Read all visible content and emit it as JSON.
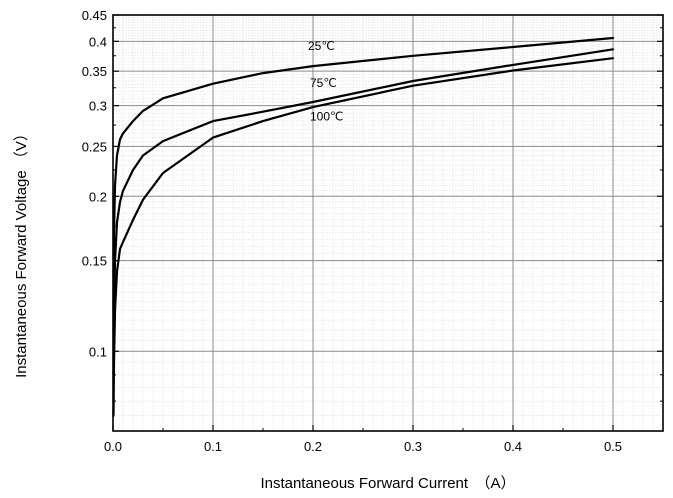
{
  "chart_data": {
    "type": "line",
    "title": "",
    "xlabel": "Instantaneous Forward Current　（A）",
    "ylabel": "Instantaneous Forward Voltage （V）",
    "xlim": [
      0,
      0.55
    ],
    "ylim": [
      0.07,
      0.45
    ],
    "yscale": "log",
    "grid": true,
    "x_ticks": [
      "0.0",
      "0.1",
      "0.2",
      "0.3",
      "0.4",
      "0.5"
    ],
    "x_tick_values": [
      0,
      0.1,
      0.2,
      0.3,
      0.4,
      0.5
    ],
    "y_ticks": [
      "0.1",
      "0.15",
      "0.2",
      "0.25",
      "0.3",
      "0.35",
      "0.4",
      "0.45"
    ],
    "y_tick_values": [
      0.1,
      0.15,
      0.2,
      0.25,
      0.3,
      0.35,
      0.4,
      0.45
    ],
    "series": [
      {
        "name": "25℃",
        "label_at": [
          0.195,
          0.385
        ],
        "x": [
          0.0005,
          0.001,
          0.002,
          0.004,
          0.007,
          0.01,
          0.02,
          0.03,
          0.05,
          0.1,
          0.15,
          0.2,
          0.3,
          0.4,
          0.5
        ],
        "y": [
          0.12,
          0.17,
          0.21,
          0.24,
          0.258,
          0.265,
          0.28,
          0.293,
          0.31,
          0.331,
          0.347,
          0.358,
          0.375,
          0.39,
          0.406
        ]
      },
      {
        "name": "75℃",
        "label_at": [
          0.197,
          0.326
        ],
        "x": [
          0.0005,
          0.001,
          0.002,
          0.004,
          0.007,
          0.01,
          0.02,
          0.03,
          0.05,
          0.1,
          0.15,
          0.2,
          0.3,
          0.4,
          0.5
        ],
        "y": [
          0.09,
          0.12,
          0.15,
          0.178,
          0.195,
          0.205,
          0.225,
          0.24,
          0.256,
          0.28,
          0.292,
          0.305,
          0.335,
          0.36,
          0.386
        ]
      },
      {
        "name": "100℃",
        "label_at": [
          0.197,
          0.281
        ],
        "x": [
          0.0005,
          0.001,
          0.002,
          0.004,
          0.007,
          0.01,
          0.02,
          0.03,
          0.05,
          0.1,
          0.15,
          0.2,
          0.3,
          0.4,
          0.5
        ],
        "y": [
          0.075,
          0.095,
          0.12,
          0.143,
          0.158,
          0.163,
          0.18,
          0.197,
          0.222,
          0.26,
          0.28,
          0.298,
          0.328,
          0.351,
          0.371
        ]
      }
    ]
  }
}
